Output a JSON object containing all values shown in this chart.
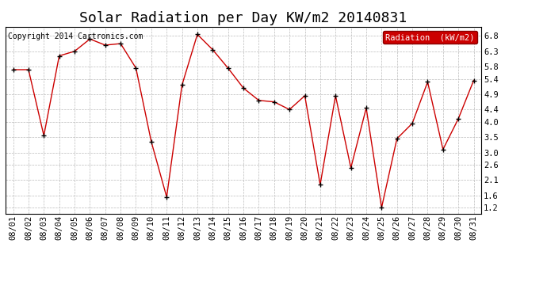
{
  "title": "Solar Radiation per Day KW/m2 20140831",
  "copyright": "Copyright 2014 Cartronics.com",
  "legend_label": "Radiation  (kW/m2)",
  "dates": [
    "08/01",
    "08/02",
    "08/03",
    "08/04",
    "08/05",
    "08/06",
    "08/07",
    "08/08",
    "08/09",
    "08/10",
    "08/11",
    "08/12",
    "08/13",
    "08/14",
    "08/15",
    "08/16",
    "08/17",
    "08/18",
    "08/19",
    "08/20",
    "08/21",
    "08/22",
    "08/23",
    "08/24",
    "08/25",
    "08/26",
    "08/27",
    "08/28",
    "08/29",
    "08/30",
    "08/31"
  ],
  "values": [
    5.7,
    5.7,
    3.55,
    6.15,
    6.3,
    6.7,
    6.5,
    6.55,
    5.75,
    3.35,
    1.55,
    5.2,
    6.85,
    6.35,
    5.75,
    5.1,
    4.7,
    4.65,
    4.4,
    4.85,
    1.95,
    4.85,
    2.5,
    4.45,
    1.2,
    3.45,
    3.95,
    5.3,
    3.1,
    4.1,
    5.35
  ],
  "line_color": "#cc0000",
  "marker_color": "#000000",
  "grid_color": "#bbbbbb",
  "bg_color": "#ffffff",
  "plot_bg_color": "#ffffff",
  "legend_bg": "#cc0000",
  "legend_text_color": "#ffffff",
  "ylim_min": 1.0,
  "ylim_max": 7.1,
  "yticks": [
    1.2,
    1.6,
    2.1,
    2.6,
    3.0,
    3.5,
    4.0,
    4.4,
    4.9,
    5.4,
    5.8,
    6.3,
    6.8
  ],
  "title_fontsize": 13,
  "tick_fontsize": 7.5,
  "copyright_fontsize": 7
}
